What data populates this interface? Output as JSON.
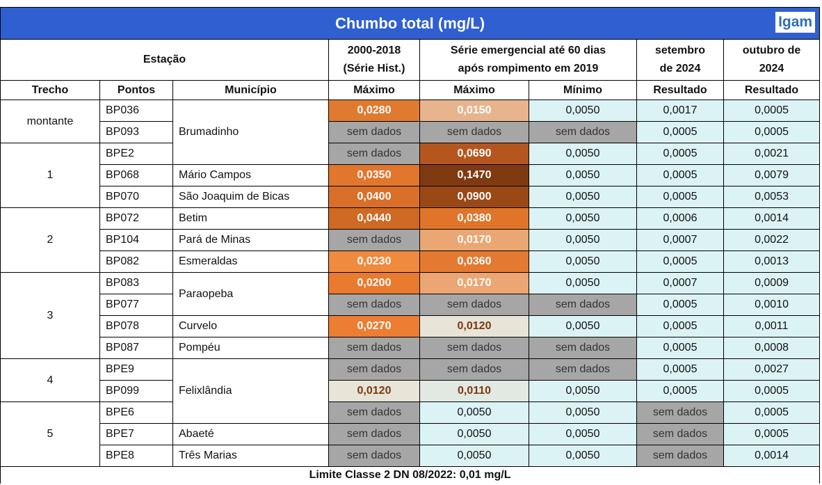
{
  "title": "Chumbo total (mg/L)",
  "logo": "Igam",
  "header": {
    "estacao": "Estação",
    "hist": "2000-2018 (Série Hist.)",
    "emerg": "Série emergencial até 60 dias após rompimento em 2019",
    "set": "setembro de 2024",
    "out": "outubro de 2024",
    "trecho": "Trecho",
    "pontos": "Pontos",
    "municipio": "Município",
    "maximo_hist": "Máximo",
    "maximo_emerg": "Máximo",
    "minimo": "Mínimo",
    "resultado_set": "Resultado",
    "resultado_out": "Resultado"
  },
  "palette": {
    "none": "#a6a6a6",
    "normal": "#dcf3f6"
  },
  "groups": [
    {
      "trecho": "montante",
      "rows": [
        {
          "ponto": "BP036",
          "municipio": "Brumadinho",
          "values": [
            "0,0280",
            "0,0150",
            "0,0050",
            "0,0017",
            "0,0005"
          ],
          "fills": [
            "#e07a30",
            "#e8b48d",
            "normal",
            "normal",
            "normal"
          ]
        },
        {
          "ponto": "BP093",
          "values": [
            "sem dados",
            "sem dados",
            "sem dados",
            "0,0005",
            "0,0005"
          ],
          "fills": [
            "none",
            "none",
            "none",
            "normal",
            "normal"
          ]
        }
      ]
    },
    {
      "trecho": "1",
      "rows": [
        {
          "ponto": "BPE2",
          "values": [
            "sem dados",
            "0,0690",
            "0,0050",
            "0,0005",
            "0,0021"
          ],
          "fills": [
            "none",
            "#b5561e",
            "normal",
            "normal",
            "normal"
          ]
        },
        {
          "ponto": "BP068",
          "municipio": "Mário Campos",
          "values": [
            "0,0350",
            "0,1470",
            "0,0050",
            "0,0005",
            "0,0079"
          ],
          "fills": [
            "#e0772d",
            "#7f3a12",
            "normal",
            "normal",
            "normal"
          ]
        },
        {
          "ponto": "BP070",
          "municipio": "São Joaquim de Bicas",
          "values": [
            "0,0400",
            "0,0900",
            "0,0050",
            "0,0005",
            "0,0053"
          ],
          "fills": [
            "#d96f28",
            "#9b4817",
            "normal",
            "normal",
            "normal"
          ]
        }
      ]
    },
    {
      "trecho": "2",
      "rows": [
        {
          "ponto": "BP072",
          "municipio": "Betim",
          "values": [
            "0,0440",
            "0,0380",
            "0,0050",
            "0,0006",
            "0,0014"
          ],
          "fills": [
            "#cf6923",
            "#e07429",
            "normal",
            "normal",
            "normal"
          ]
        },
        {
          "ponto": "BP104",
          "municipio": "Pará de Minas",
          "values": [
            "sem dados",
            "0,0170",
            "0,0050",
            "0,0007",
            "0,0022"
          ],
          "fills": [
            "none",
            "#eaa673",
            "normal",
            "normal",
            "normal"
          ]
        },
        {
          "ponto": "BP082",
          "municipio": "Esmeraldas",
          "values": [
            "0,0230",
            "0,0360",
            "0,0050",
            "0,0005",
            "0,0013"
          ],
          "fills": [
            "#ef8a3e",
            "#e47a32",
            "normal",
            "normal",
            "normal"
          ]
        }
      ]
    },
    {
      "trecho": "3",
      "rows": [
        {
          "ponto": "BP083",
          "municipio": "Paraopeba",
          "values": [
            "0,0200",
            "0,0170",
            "0,0050",
            "0,0007",
            "0,0009"
          ],
          "fills": [
            "#ea7a2d",
            "#eba673",
            "normal",
            "normal",
            "normal"
          ]
        },
        {
          "ponto": "BP077",
          "values": [
            "sem dados",
            "sem dados",
            "sem dados",
            "0,0005",
            "0,0010"
          ],
          "fills": [
            "none",
            "none",
            "none",
            "normal",
            "normal"
          ]
        },
        {
          "ponto": "BP078",
          "municipio": "Curvelo",
          "values": [
            "0,0270",
            "0,0120",
            "0,0050",
            "0,0005",
            "0,0011"
          ],
          "fills": [
            "#ec7d33",
            "#e8e4d8",
            "normal",
            "normal",
            "normal"
          ]
        },
        {
          "ponto": "BP087",
          "municipio": "Pompéu",
          "values": [
            "sem dados",
            "sem dados",
            "sem dados",
            "0,0005",
            "0,0008"
          ],
          "fills": [
            "none",
            "none",
            "none",
            "normal",
            "normal"
          ]
        }
      ]
    },
    {
      "trecho": "4",
      "rows": [
        {
          "ponto": "BPE9",
          "municipio": "Felixlândia",
          "values": [
            "sem dados",
            "sem dados",
            "sem dados",
            "0,0005",
            "0,0027"
          ],
          "fills": [
            "none",
            "none",
            "none",
            "normal",
            "normal"
          ]
        },
        {
          "ponto": "BP099",
          "values": [
            "0,0120",
            "0,0110",
            "0,0050",
            "0,0005",
            "0,0005"
          ],
          "fills": [
            "#e8e4d8",
            "#e2e8e2",
            "normal",
            "normal",
            "normal"
          ]
        }
      ]
    },
    {
      "trecho": "5",
      "rows": [
        {
          "ponto": "BPE6",
          "values": [
            "sem dados",
            "0,0050",
            "0,0050",
            "sem dados",
            "0,0005"
          ],
          "fills": [
            "none",
            "normal",
            "normal",
            "none",
            "normal"
          ]
        },
        {
          "ponto": "BPE7",
          "municipio": "Abaeté",
          "values": [
            "sem dados",
            "0,0050",
            "0,0050",
            "sem dados",
            "0,0005"
          ],
          "fills": [
            "none",
            "normal",
            "normal",
            "none",
            "normal"
          ]
        },
        {
          "ponto": "BPE8",
          "municipio": "Três Marias",
          "values": [
            "sem dados",
            "0,0050",
            "0,0050",
            "sem dados",
            "0,0014"
          ],
          "fills": [
            "none",
            "normal",
            "normal",
            "none",
            "normal"
          ]
        }
      ]
    }
  ],
  "footer": "Limite Classe 2 DN 08/2022: 0,01 mg/L"
}
